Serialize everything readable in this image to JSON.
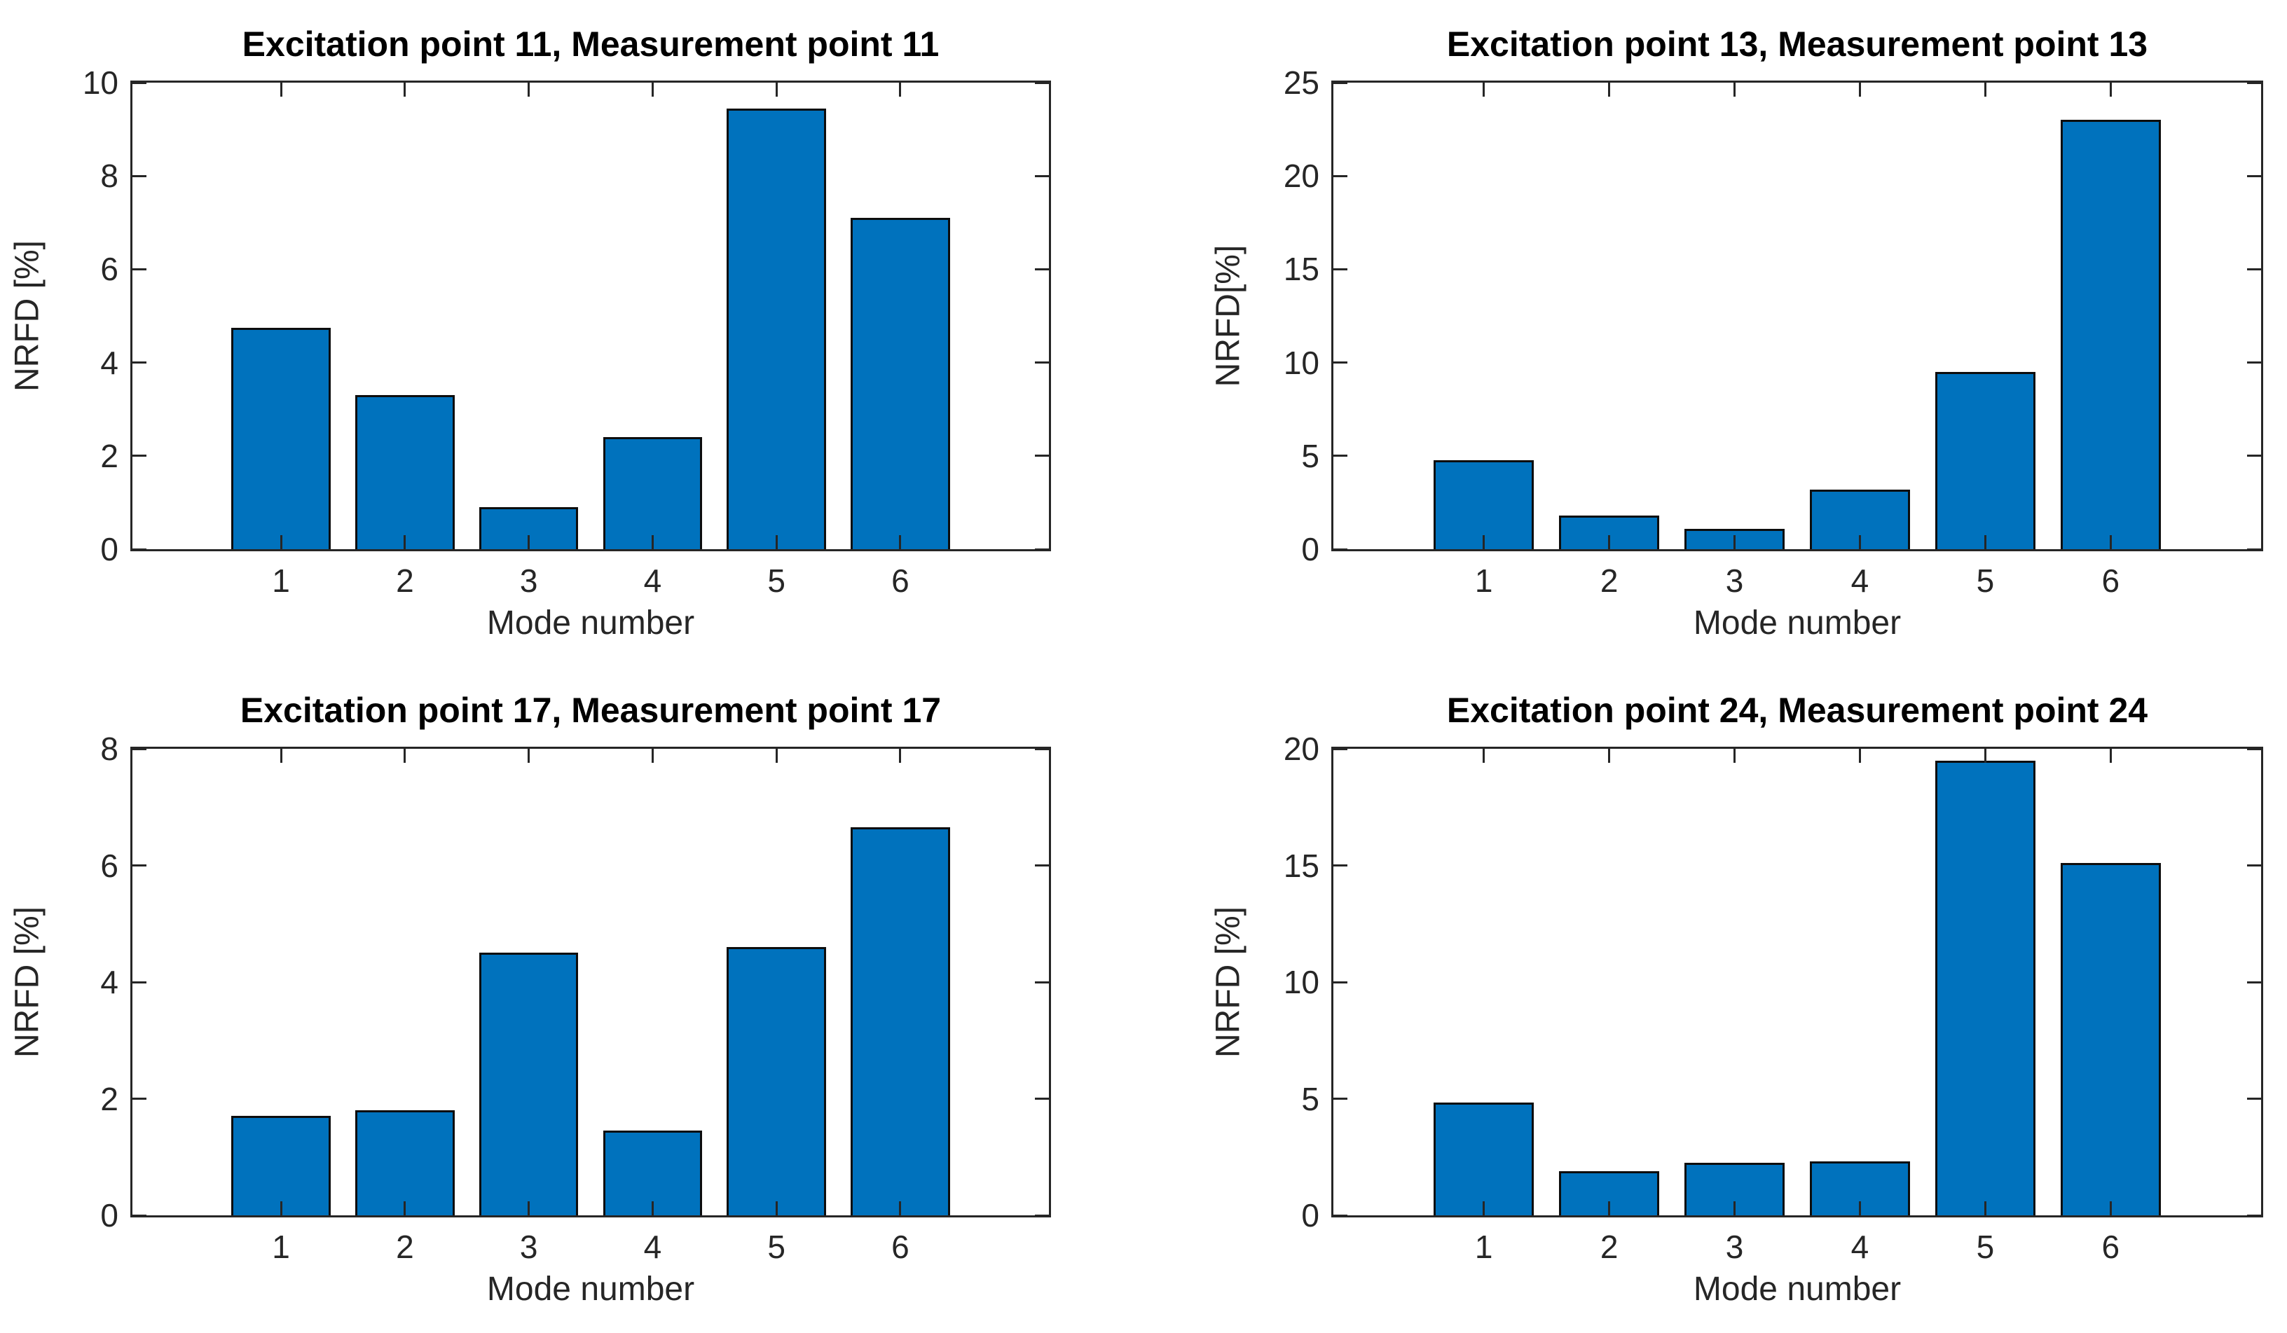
{
  "figure": {
    "background": "#ffffff"
  },
  "chart_data": [
    {
      "type": "bar",
      "title": "Excitation point 11, Measurement point 11",
      "xlabel": "Mode number",
      "ylabel": "NRFD [%]",
      "categories": [
        "1",
        "2",
        "3",
        "4",
        "5",
        "6"
      ],
      "values": [
        4.75,
        3.3,
        0.9,
        2.4,
        9.45,
        7.1
      ],
      "ylim": [
        0,
        10
      ],
      "yticks": [
        0,
        2,
        4,
        6,
        8,
        10
      ],
      "grid": "off",
      "bar_color": "#0072BD",
      "bar_edge_color": "#0d0d0d",
      "axis_color": "#262626"
    },
    {
      "type": "bar",
      "title": "Excitation point 13, Measurement point 13",
      "xlabel": "Mode number",
      "ylabel": "NRFD[%]",
      "categories": [
        "1",
        "2",
        "3",
        "4",
        "5",
        "6"
      ],
      "values": [
        4.75,
        1.8,
        1.1,
        3.2,
        9.5,
        23.0
      ],
      "ylim": [
        0,
        25
      ],
      "yticks": [
        0,
        5,
        10,
        15,
        20,
        25
      ],
      "grid": "off",
      "bar_color": "#0072BD",
      "bar_edge_color": "#0d0d0d",
      "axis_color": "#262626"
    },
    {
      "type": "bar",
      "title": "Excitation point 17, Measurement point 17",
      "xlabel": "Mode number",
      "ylabel": "NRFD [%]",
      "categories": [
        "1",
        "2",
        "3",
        "4",
        "5",
        "6"
      ],
      "values": [
        1.7,
        1.8,
        4.5,
        1.45,
        4.6,
        6.65
      ],
      "ylim": [
        0,
        8
      ],
      "yticks": [
        0,
        2,
        4,
        6,
        8
      ],
      "grid": "off",
      "bar_color": "#0072BD",
      "bar_edge_color": "#0d0d0d",
      "axis_color": "#262626"
    },
    {
      "type": "bar",
      "title": "Excitation point 24, Measurement point 24",
      "xlabel": "Mode number",
      "ylabel": "NRFD [%]",
      "categories": [
        "1",
        "2",
        "3",
        "4",
        "5",
        "6"
      ],
      "values": [
        4.85,
        1.9,
        2.25,
        2.3,
        19.5,
        15.1
      ],
      "ylim": [
        0,
        20
      ],
      "yticks": [
        0,
        5,
        10,
        15,
        20
      ],
      "grid": "off",
      "bar_color": "#0072BD",
      "bar_edge_color": "#0d0d0d",
      "axis_color": "#262626"
    }
  ]
}
